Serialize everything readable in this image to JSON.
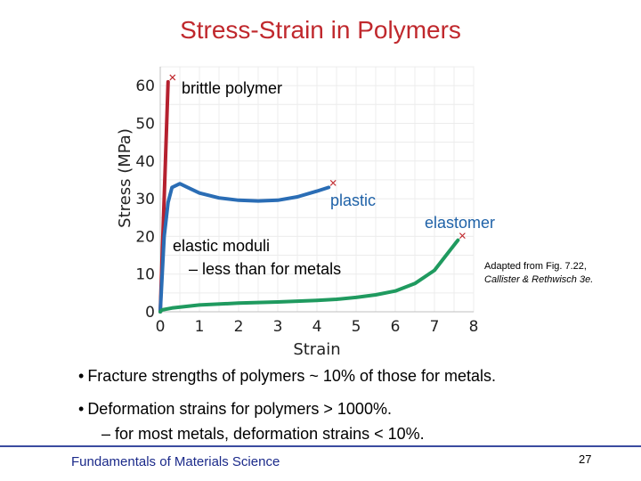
{
  "title": "Stress-Strain in Polymers",
  "chart_data": {
    "type": "line",
    "xlabel": "Strain",
    "ylabel": "Stress (MPa)",
    "xlim": [
      0,
      8
    ],
    "ylim": [
      0,
      65
    ],
    "xticks": [
      0,
      1,
      2,
      3,
      4,
      5,
      6,
      7,
      8
    ],
    "yticks": [
      0,
      10,
      20,
      30,
      40,
      50,
      60
    ],
    "grid": true,
    "series": [
      {
        "name": "brittle polymer",
        "color": "#b5202e",
        "x": [
          0,
          0.1,
          0.2
        ],
        "y": [
          0,
          30,
          61
        ]
      },
      {
        "name": "plastic",
        "color": "#2a6db5",
        "x": [
          0,
          0.05,
          0.1,
          0.2,
          0.3,
          0.5,
          0.7,
          1.0,
          1.5,
          2.0,
          2.5,
          3.0,
          3.5,
          4.0,
          4.3
        ],
        "y": [
          0,
          10,
          20,
          29,
          33,
          34,
          33,
          31.5,
          30.2,
          29.6,
          29.4,
          29.6,
          30.5,
          32,
          33
        ]
      },
      {
        "name": "elastomer",
        "color": "#1f9a5f",
        "x": [
          0,
          0.05,
          0.3,
          1.0,
          2.0,
          3.0,
          4.0,
          4.5,
          5.0,
          5.5,
          6.0,
          6.5,
          7.0,
          7.3,
          7.6
        ],
        "y": [
          0,
          0.5,
          1,
          1.8,
          2.3,
          2.6,
          3,
          3.3,
          3.8,
          4.5,
          5.5,
          7.5,
          11,
          15,
          19
        ]
      }
    ]
  },
  "annotations": {
    "brittle": "brittle polymer",
    "plastic": "plastic",
    "elastomer": "elastomer",
    "moduli_line1": "elastic moduli",
    "moduli_line2": "– less than for metals"
  },
  "credit": {
    "line1": "Adapted from Fig. 7.22,",
    "line2": "Callister & Rethwisch 3e."
  },
  "bullets": [
    "Fracture strengths of polymers ~ 10% of those for metals.",
    "Deformation strains for polymers > 1000%."
  ],
  "sub_bullet": "– for most metals, deformation strains < 10%.",
  "footer": "Fundamentals of Materials Science",
  "page_number": "27"
}
